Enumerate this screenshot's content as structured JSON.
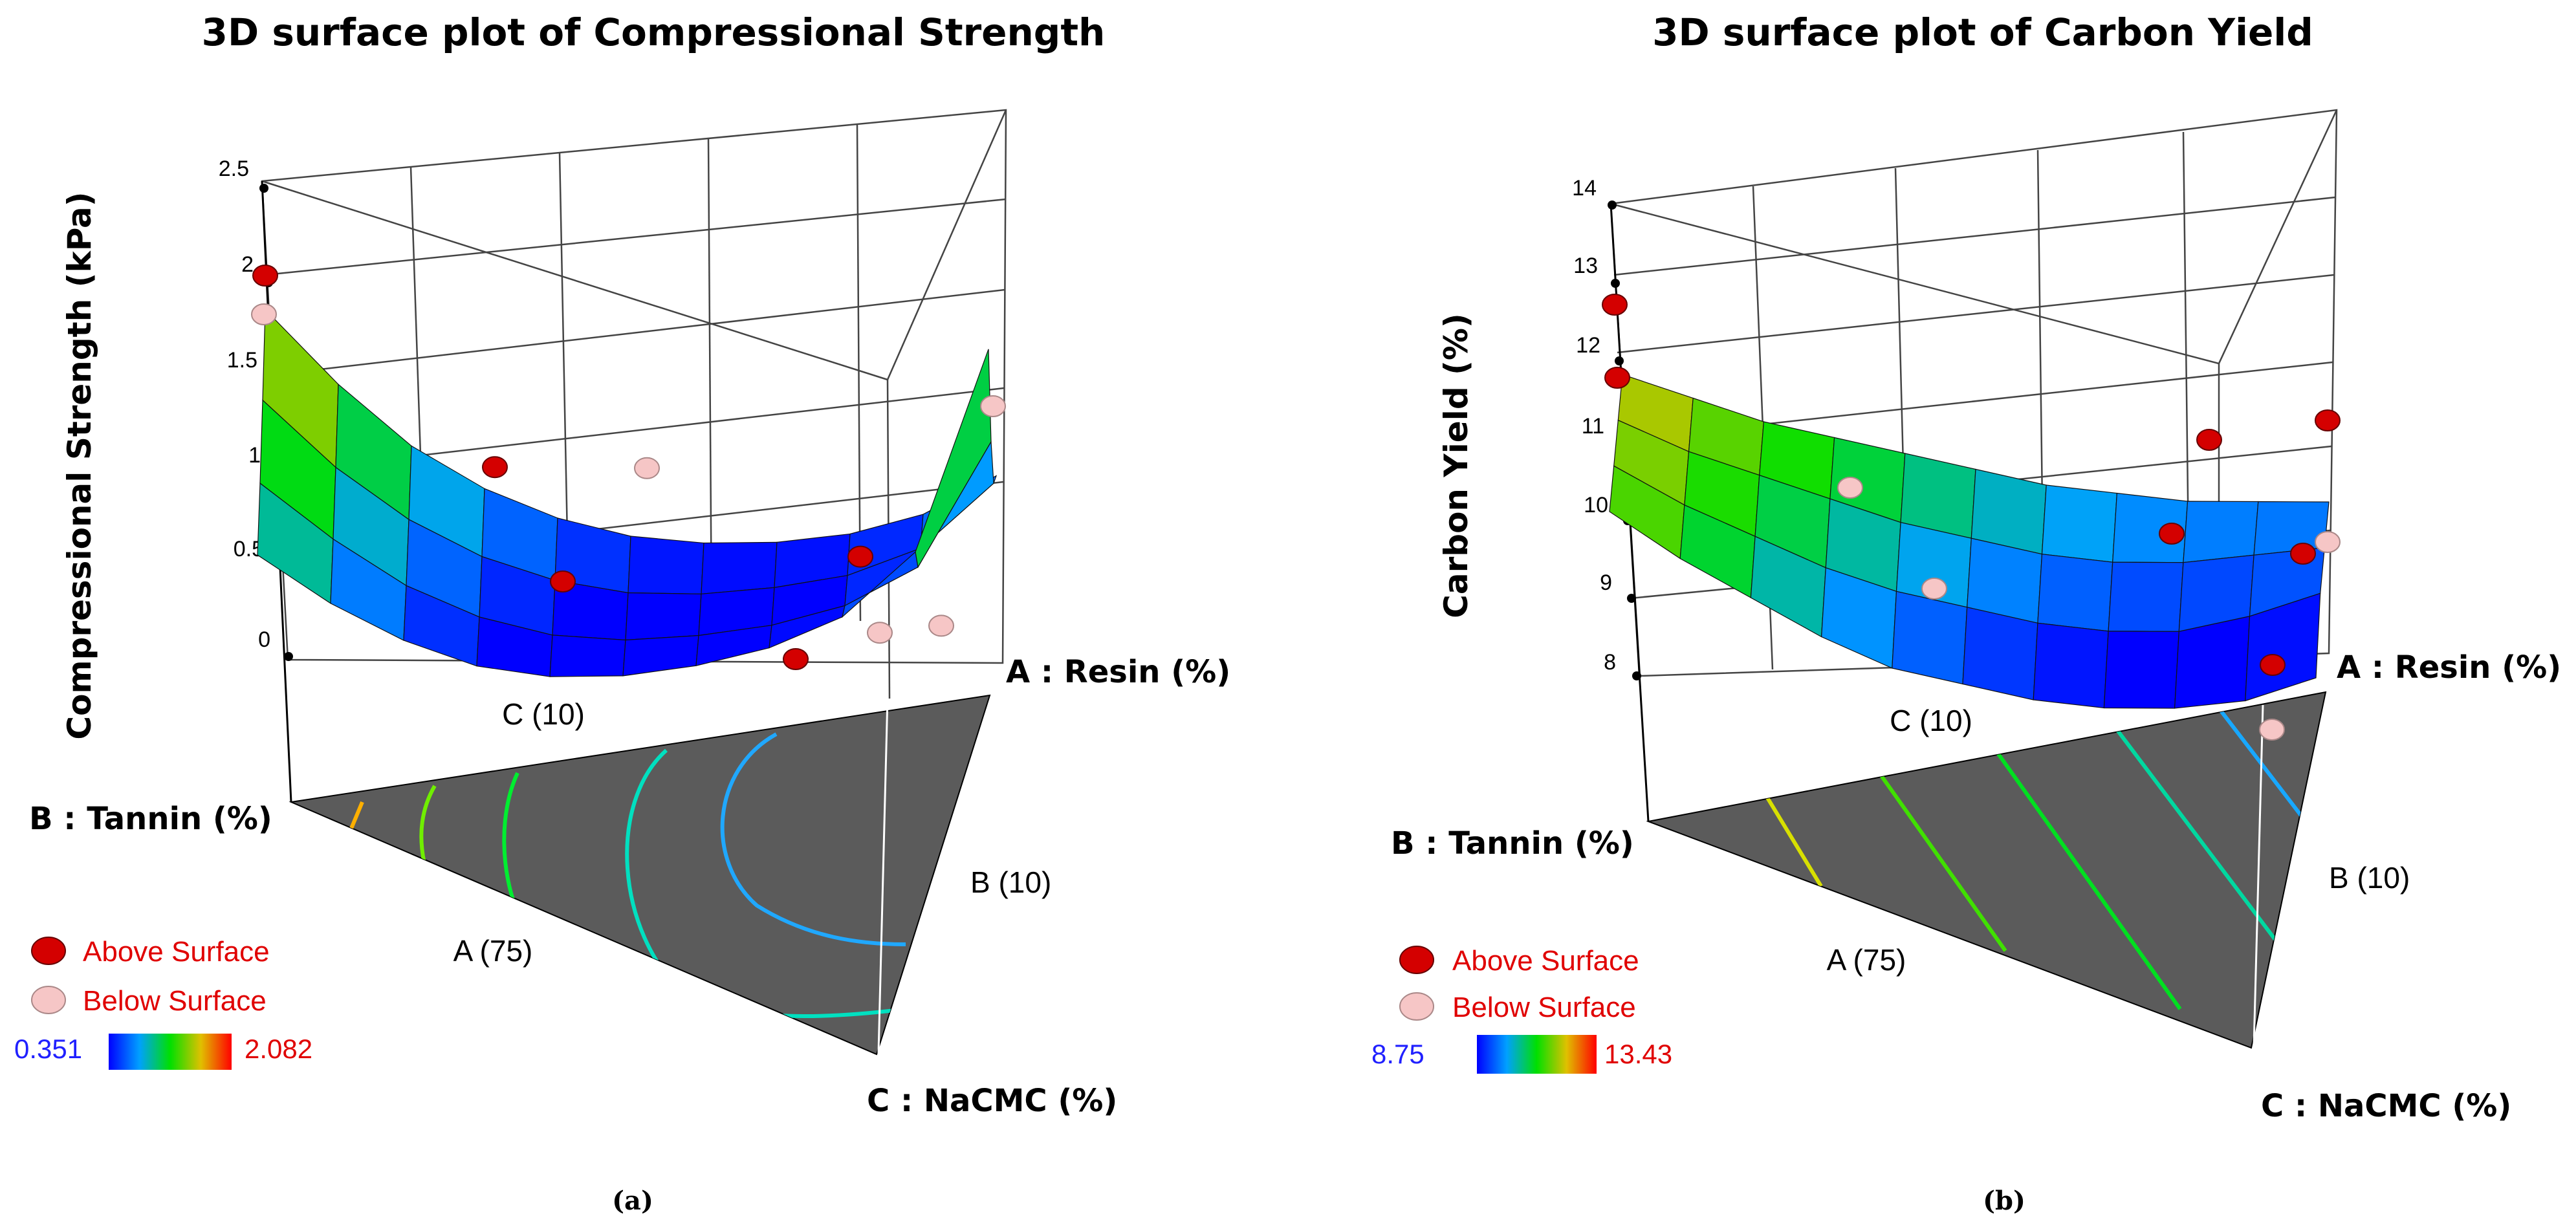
{
  "chart_data": [
    {
      "type": "surface",
      "subfigure_label": "(a)",
      "title": "3D surface plot of Compressional Strength",
      "zlabel": "Compressional Strength (kPa)",
      "zlim": [
        0,
        2.5
      ],
      "z_ticks": [
        "0",
        "0.5",
        "1",
        "1.5",
        "2",
        "2.5"
      ],
      "axes": {
        "A": "A : Resin (%)",
        "B": "B : Tannin (%)",
        "C": "C : NaCMC (%)"
      },
      "base_labels": {
        "A": "A (75)",
        "B": "B (10)",
        "C": "C (10)"
      },
      "legend": {
        "above": "Above Surface",
        "below": "Below Surface"
      },
      "colorbar": {
        "min": "0.351",
        "max": "2.082"
      },
      "surface_z": [
        [
          1.82,
          1.4,
          1.05,
          0.8,
          0.62,
          0.5,
          0.44,
          0.42,
          0.44,
          0.52,
          0.7
        ],
        [
          1.5,
          1.12,
          0.82,
          0.6,
          0.45,
          0.36,
          0.33,
          0.34,
          0.38,
          0.5,
          0.82
        ],
        [
          1.22,
          0.9,
          0.63,
          0.44,
          0.32,
          0.27,
          0.27,
          0.3,
          0.38,
          0.56,
          1.2
        ],
        [
          1.0,
          0.72,
          0.5,
          0.34,
          0.26,
          0.24,
          0.27,
          0.34,
          0.48,
          0.8,
          1.85
        ]
      ],
      "design_points": [
        {
          "z": 2.0,
          "position": "above"
        },
        {
          "z": 1.88,
          "position": "below"
        },
        {
          "z": 1.02,
          "position": "above"
        },
        {
          "z": 0.98,
          "position": "below"
        },
        {
          "z": 0.62,
          "position": "above"
        },
        {
          "z": 0.58,
          "position": "above"
        },
        {
          "z": 0.38,
          "position": "above"
        },
        {
          "z": 0.42,
          "position": "below"
        },
        {
          "z": 0.52,
          "position": "below"
        },
        {
          "z": 1.12,
          "position": "below"
        }
      ]
    },
    {
      "type": "surface",
      "subfigure_label": "(b)",
      "title": "3D surface plot of Carbon Yield",
      "zlabel": "Carbon Yield (%)",
      "zlim": [
        8,
        14
      ],
      "z_ticks": [
        "8",
        "9",
        "10",
        "11",
        "12",
        "13",
        "14"
      ],
      "axes": {
        "A": "A : Resin (%)",
        "B": "B : Tannin (%)",
        "C": "C : NaCMC (%)"
      },
      "base_labels": {
        "A": "A (75)",
        "B": "B (10)",
        "C": "C (10)"
      },
      "legend": {
        "above": "Above Surface",
        "below": "Below Surface"
      },
      "colorbar": {
        "min": "8.75",
        "max": "13.43"
      },
      "surface_z": [
        [
          12.3,
          11.9,
          11.5,
          11.2,
          10.9,
          10.6,
          10.3,
          10.1,
          9.9,
          9.8,
          9.7
        ],
        [
          12.1,
          11.6,
          11.2,
          10.8,
          10.4,
          10.1,
          9.8,
          9.6,
          9.5,
          9.5,
          9.5
        ],
        [
          11.9,
          11.3,
          10.8,
          10.3,
          9.9,
          9.6,
          9.3,
          9.1,
          9.0,
          9.1,
          9.3
        ],
        [
          11.7,
          11.0,
          10.4,
          9.8,
          9.3,
          9.0,
          8.7,
          8.5,
          8.4,
          8.4,
          8.6
        ]
      ],
      "design_points": [
        {
          "z": 13.2,
          "position": "above"
        },
        {
          "z": 12.3,
          "position": "above"
        },
        {
          "z": 10.8,
          "position": "below"
        },
        {
          "z": 10.75,
          "position": "above"
        },
        {
          "z": 11.0,
          "position": "above"
        },
        {
          "z": 10.0,
          "position": "above"
        },
        {
          "z": 9.5,
          "position": "below"
        },
        {
          "z": 9.7,
          "position": "above"
        },
        {
          "z": 10.1,
          "position": "below"
        },
        {
          "z": 8.6,
          "position": "above"
        },
        {
          "z": 8.0,
          "position": "below"
        }
      ]
    }
  ],
  "colors": {
    "base": "#5b5b5b",
    "above_point": "#d40000",
    "below_point": "#f6c6c6",
    "grid": "#444444",
    "label_red": "#e00000",
    "label_blue": "#2020ff"
  }
}
